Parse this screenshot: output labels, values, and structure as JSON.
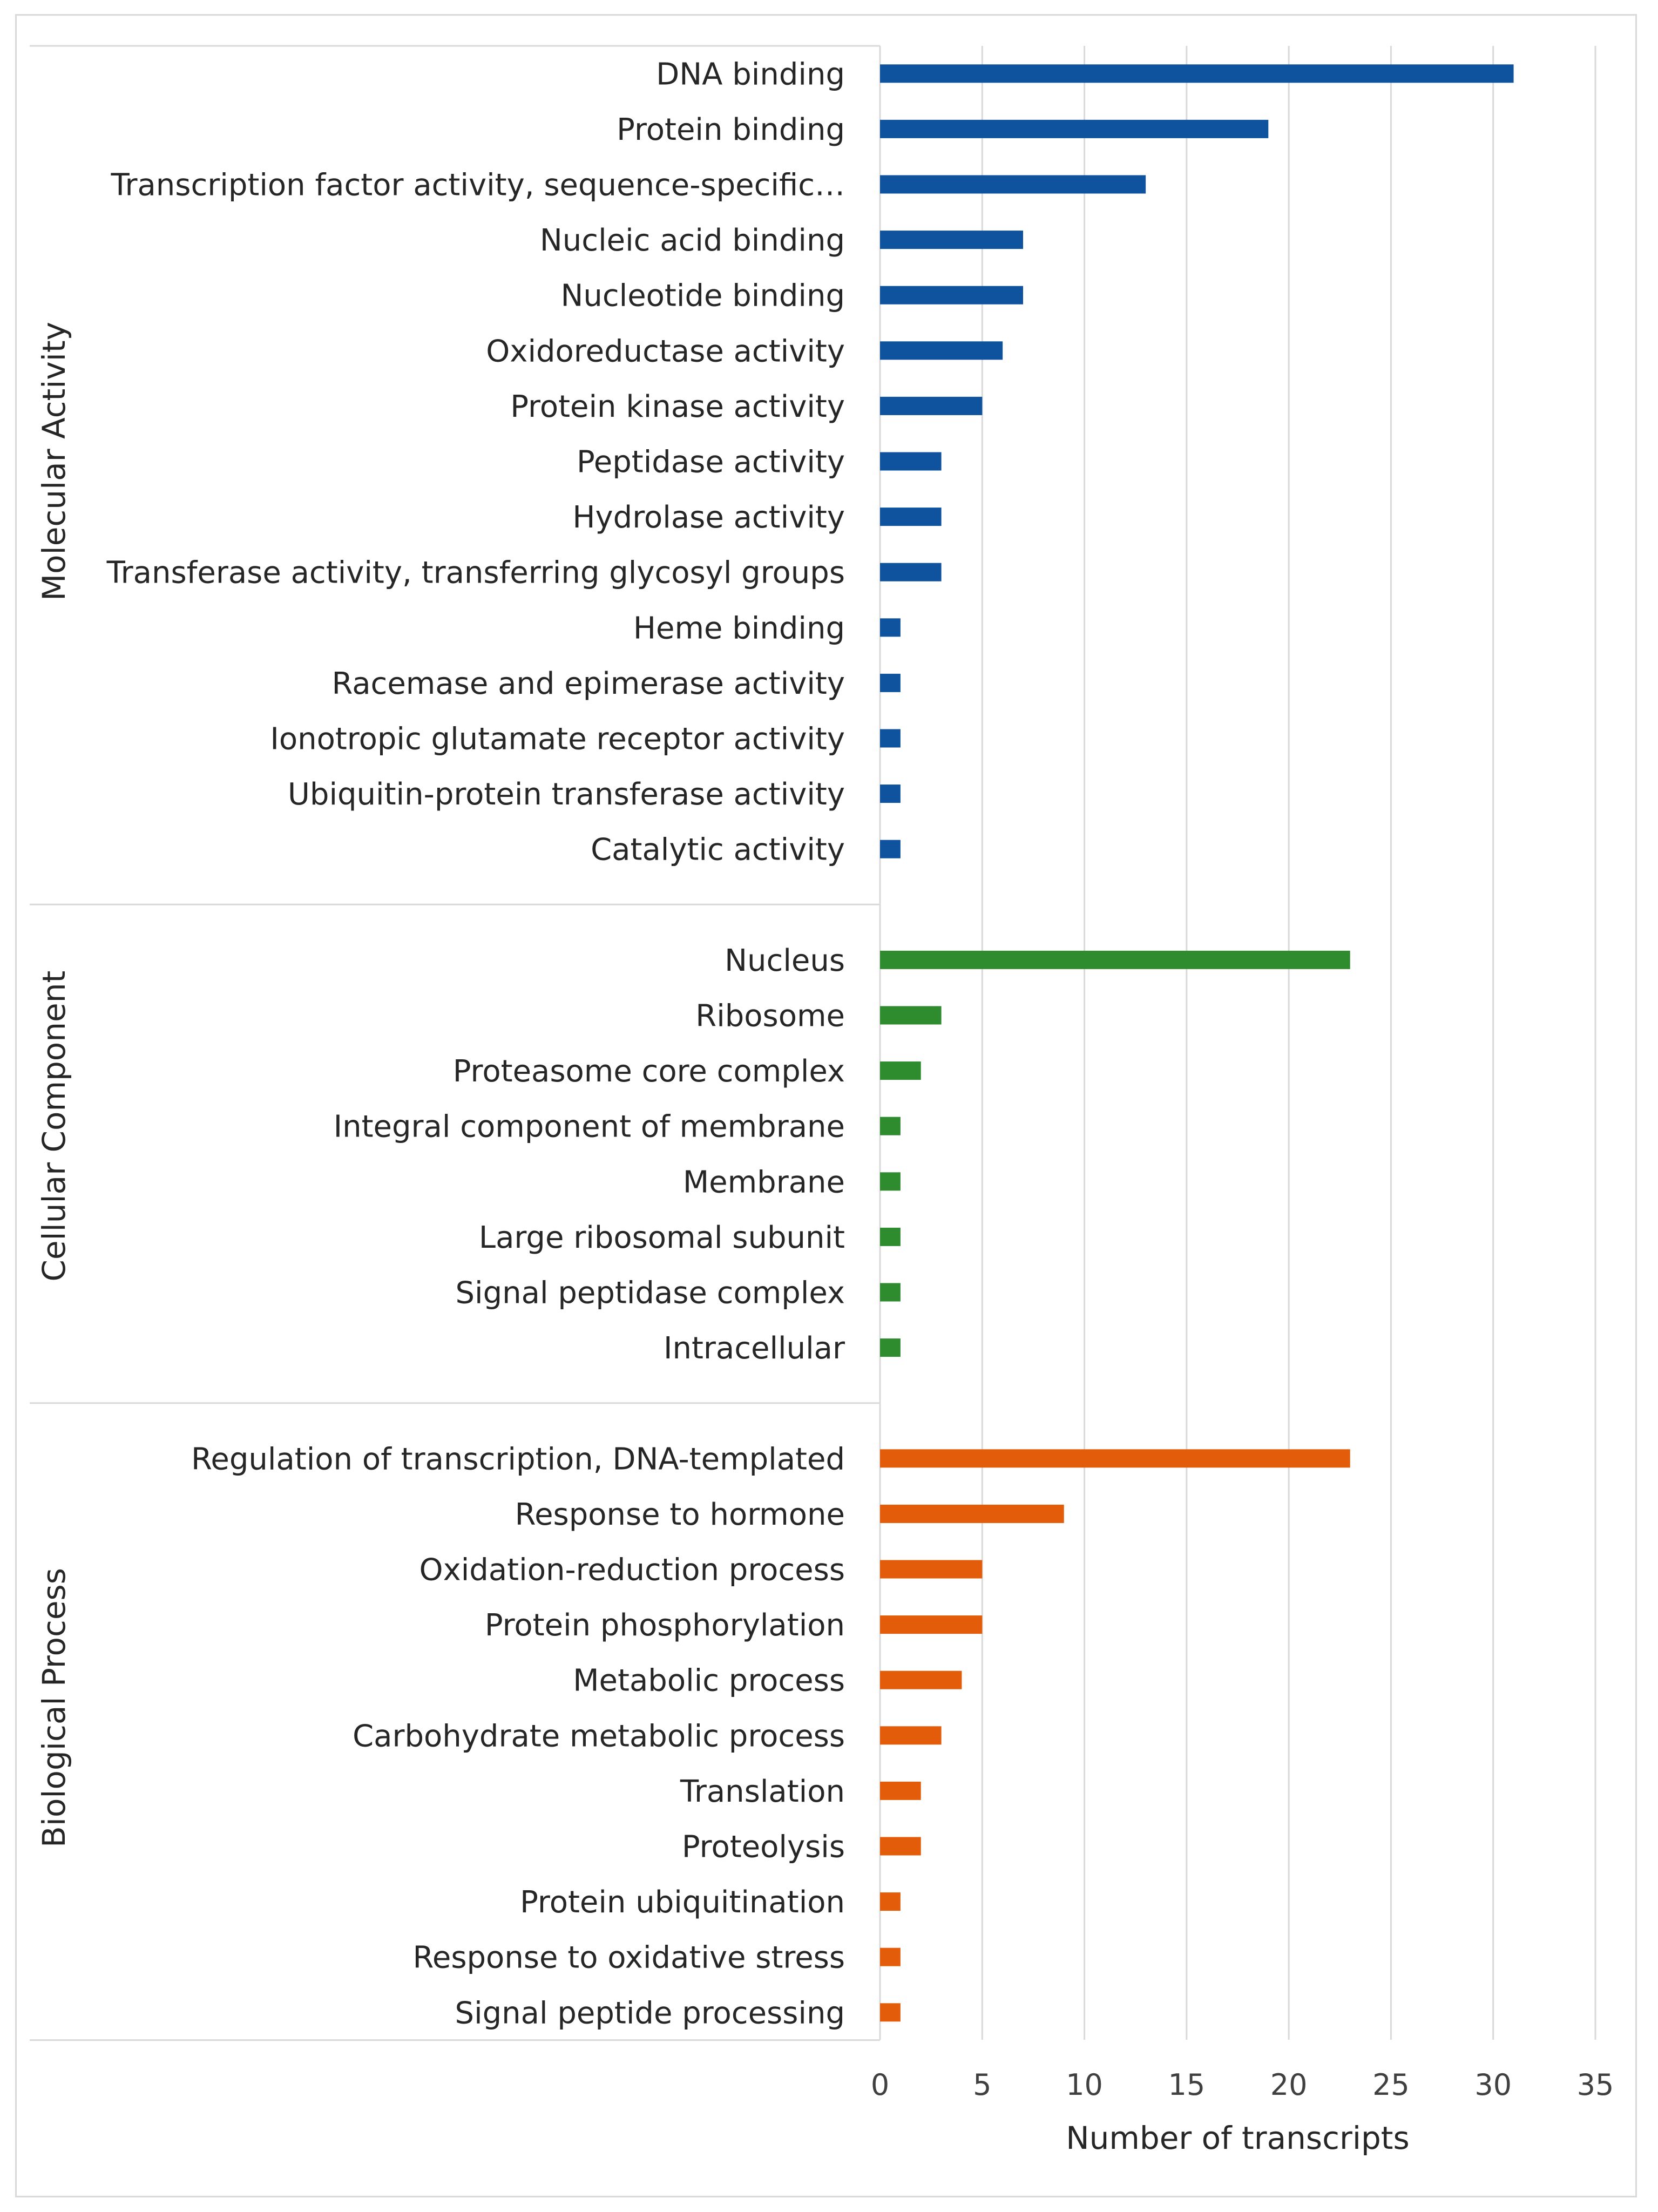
{
  "chart_data": {
    "type": "bar",
    "orientation": "horizontal",
    "xlabel": "Number of transcripts",
    "xlim": [
      0,
      35
    ],
    "xticks": [
      0,
      5,
      10,
      15,
      20,
      25,
      30,
      35
    ],
    "grid": true,
    "groups": [
      {
        "name": "Molecular Activity",
        "color": "#0f539e",
        "categories": [
          "DNA binding",
          "Protein binding",
          "Transcription factor activity, sequence-specific…",
          "Nucleic acid binding",
          "Nucleotide binding",
          "Oxidoreductase activity",
          "Protein kinase activity",
          "Peptidase activity",
          "Hydrolase activity",
          "Transferase activity, transferring glycosyl groups",
          "Heme binding",
          "Racemase and epimerase activity",
          "Ionotropic glutamate receptor activity",
          "Ubiquitin-protein transferase activity",
          "Catalytic activity"
        ],
        "values": [
          31,
          19,
          13,
          7,
          7,
          6,
          5,
          3,
          3,
          3,
          1,
          1,
          1,
          1,
          1
        ]
      },
      {
        "name": "Cellular Component",
        "color": "#2e8b2e",
        "categories": [
          "Nucleus",
          "Ribosome",
          "Proteasome core complex",
          "Integral component of membrane",
          "Membrane",
          "Large ribosomal subunit",
          "Signal peptidase complex",
          "Intracellular"
        ],
        "values": [
          23,
          3,
          2,
          1,
          1,
          1,
          1,
          1
        ]
      },
      {
        "name": "Biological Process",
        "color": "#e35c0a",
        "categories": [
          "Regulation of transcription, DNA-templated",
          "Response to hormone",
          "Oxidation-reduction process",
          "Protein phosphorylation",
          "Metabolic process",
          "Carbohydrate metabolic process",
          "Translation",
          "Proteolysis",
          "Protein ubiquitination",
          "Response to oxidative stress",
          "Signal peptide processing"
        ],
        "values": [
          23,
          9,
          5,
          5,
          4,
          3,
          2,
          2,
          1,
          1,
          1
        ]
      }
    ]
  }
}
